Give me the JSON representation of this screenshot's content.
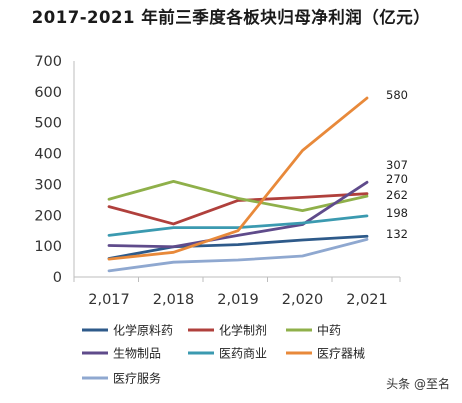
{
  "chart_data": {
    "type": "line",
    "title": "2017-2021 年前三季度各板块归母净利润（亿元）",
    "xlabel": "",
    "ylabel": "",
    "categories": [
      "2,017",
      "2,018",
      "2,019",
      "2,020",
      "2,021"
    ],
    "ylim": [
      0,
      700
    ],
    "yticks": [
      "0",
      "100",
      "200",
      "300",
      "400",
      "500",
      "600",
      "700"
    ],
    "grid": false,
    "legend_position": "bottom",
    "series": [
      {
        "name": "化学原料药",
        "color": "#2e5a8a",
        "values": [
          60,
          98,
          105,
          120,
          132
        ]
      },
      {
        "name": "化学制剂",
        "color": "#b0403c",
        "values": [
          228,
          172,
          248,
          258,
          270
        ]
      },
      {
        "name": "中药",
        "color": "#8fb04a",
        "values": [
          252,
          310,
          255,
          215,
          262
        ]
      },
      {
        "name": "生物制品",
        "color": "#5f4b8b",
        "values": [
          102,
          98,
          135,
          170,
          307
        ]
      },
      {
        "name": "医药商业",
        "color": "#3b9ab0",
        "values": [
          135,
          160,
          160,
          175,
          198
        ]
      },
      {
        "name": "医疗器械",
        "color": "#e8893a",
        "values": [
          58,
          80,
          150,
          410,
          580
        ]
      },
      {
        "name": "医疗服务",
        "color": "#8fa8d0",
        "values": [
          20,
          48,
          55,
          68,
          122
        ]
      }
    ],
    "data_labels": [
      "580",
      "307",
      "270",
      "262",
      "198",
      "132"
    ]
  },
  "watermark": "头条 @至名"
}
